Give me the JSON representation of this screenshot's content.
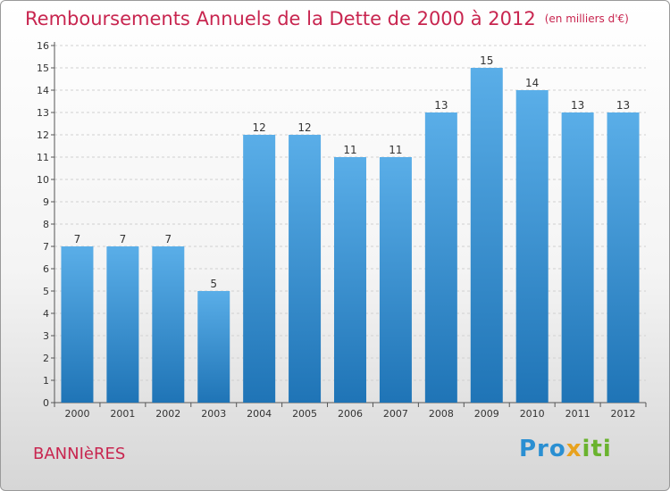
{
  "header": {
    "title": "Remboursements Annuels de la Dette de 2000 à 2012",
    "unit": "(en milliers d'€)"
  },
  "footer": {
    "commune": "BANNIèRES",
    "brand_parts": [
      "Pro",
      "x",
      "iti"
    ]
  },
  "colors": {
    "title": "#c8254f",
    "bar_light": "#5aaee8",
    "bar_dark": "#1f74b6"
  },
  "chart_data": {
    "type": "bar",
    "title": "Remboursements Annuels de la Dette de 2000 à 2012",
    "categories": [
      "2000",
      "2001",
      "2002",
      "2003",
      "2004",
      "2005",
      "2006",
      "2007",
      "2008",
      "2009",
      "2010",
      "2011",
      "2012"
    ],
    "values": [
      7,
      7,
      7,
      5,
      12,
      12,
      11,
      11,
      13,
      15,
      14,
      13,
      13
    ],
    "data_labels": [
      "7",
      "7",
      "7",
      "5",
      "12",
      "12",
      "11",
      "11",
      "13",
      "15",
      "14",
      "13",
      "13"
    ],
    "y_ticks": [
      0,
      1,
      2,
      3,
      4,
      5,
      6,
      7,
      8,
      9,
      10,
      11,
      12,
      13,
      14,
      15,
      16
    ],
    "ylim": [
      0,
      16
    ],
    "xlabel": "",
    "ylabel": "",
    "grid": true
  }
}
